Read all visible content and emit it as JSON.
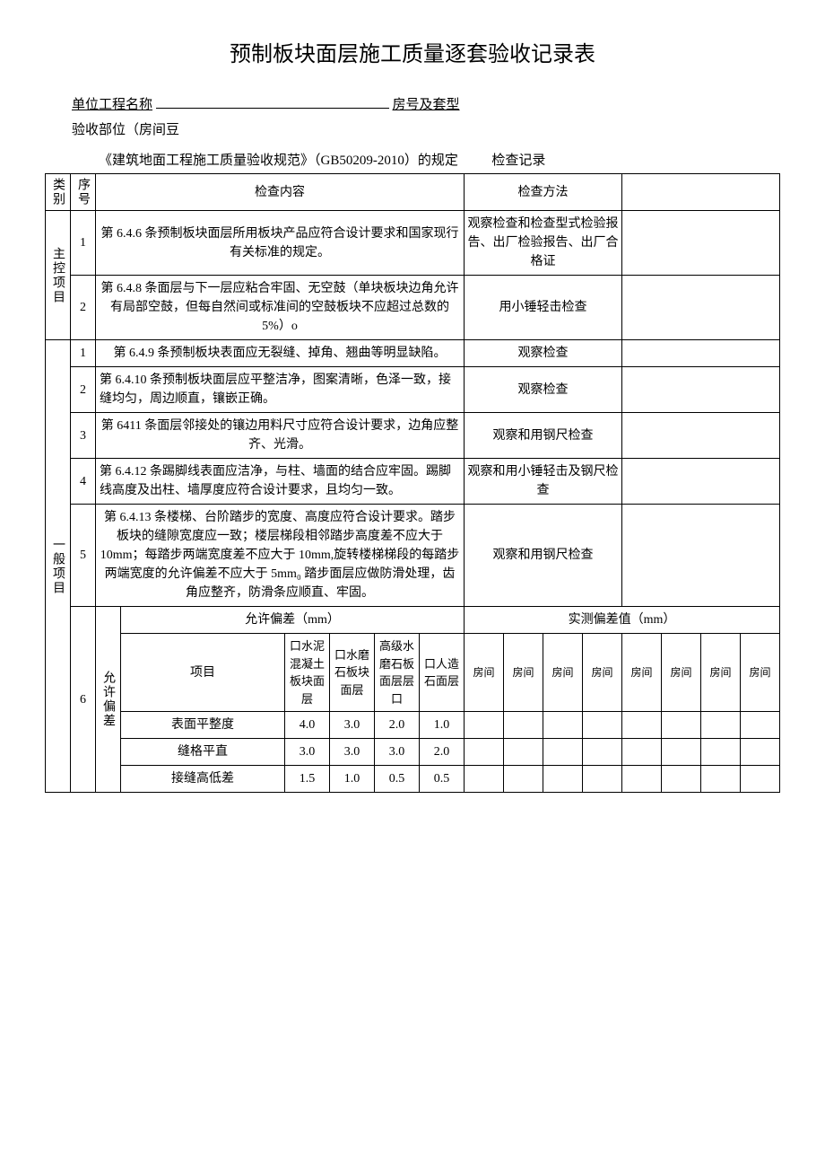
{
  "title": "预制板块面层施工质量逐套验收记录表",
  "header": {
    "unit_label": "单位工程名称",
    "room_label": "房号及套型",
    "accept_label": "验收部位（房间豆",
    "spec_text": "《建筑地面工程施工质量验收规范》（GB50209-2010）的规定",
    "record_label": "检查记录"
  },
  "columns": {
    "cat": "类别",
    "seq": "序号",
    "content": "检查内容",
    "method": "检查方法"
  },
  "main_category": "主控项目",
  "general_category": "一般项目",
  "main_items": [
    {
      "seq": "1",
      "content": "第 6.4.6 条预制板块面层所用板块产品应符合设计要求和国家现行有关标准的规定。",
      "method": "观察检查和检查型式检验报告、出厂检验报告、出厂合格证"
    },
    {
      "seq": "2",
      "content": "第 6.4.8 条面层与下一层应粘合牢固、无空鼓（单块板块边角允许有局部空鼓，但每自然间或标准间的空鼓板块不应超过总数的 5%）o",
      "method": "用小锤轻击检查"
    }
  ],
  "general_items": [
    {
      "seq": "1",
      "content": "第 6.4.9 条预制板块表面应无裂缝、掉角、翘曲等明显缺陷。",
      "method": "观察检查"
    },
    {
      "seq": "2",
      "content": "第 6.4.10 条预制板块面层应平整洁净，图案清晰，色泽一致，接缝均匀，周边顺直，镶嵌正确。",
      "method": "观察检查"
    },
    {
      "seq": "3",
      "content": "第 6411 条面层邻接处的镶边用料尺寸应符合设计要求，边角应整齐、光滑。",
      "method": "观察和用钢尺检查"
    },
    {
      "seq": "4",
      "content": "第 6.4.12 条踢脚线表面应洁净，与柱、墙面的结合应牢固。踢脚线高度及出柱、墙厚度应符合设计要求，且均匀一致。",
      "method": "观察和用小锤轻击及钢尺检查"
    },
    {
      "seq": "5",
      "content": "第 6.4.13 条楼梯、台阶踏步的宽度、高度应符合设计要求。踏步板块的缝隙宽度应一致；楼层梯段相邻踏步高度差不应大于10mm；每踏步两端宽度差不应大于 10mm,旋转楼梯梯段的每踏步两端宽度的允许偏差不应大于 5mm₀ 踏步面层应做防滑处理，齿角应整齐，防滑条应顺直、牢固。",
      "method": "观察和用钢尺检查"
    }
  ],
  "tolerance": {
    "seq": "6",
    "label": "允许偏差",
    "header_allowed": "允许偏差（mm）",
    "header_measured": "实测偏差值（mm）",
    "item_label": "项目",
    "col_headers": [
      "口水泥混凝土板块面层",
      "口水磨石板块面层",
      "高级水磨石板面层层口",
      "口人造石面层"
    ],
    "room_label": "房间",
    "rows": [
      {
        "name": "表面平整度",
        "vals": [
          "4.0",
          "3.0",
          "2.0",
          "1.0"
        ]
      },
      {
        "name": "缝格平直",
        "vals": [
          "3.0",
          "3.0",
          "3.0",
          "2.0"
        ]
      },
      {
        "name": "接缝高低差",
        "vals": [
          "1.5",
          "1.0",
          "0.5",
          "0.5"
        ]
      }
    ]
  }
}
